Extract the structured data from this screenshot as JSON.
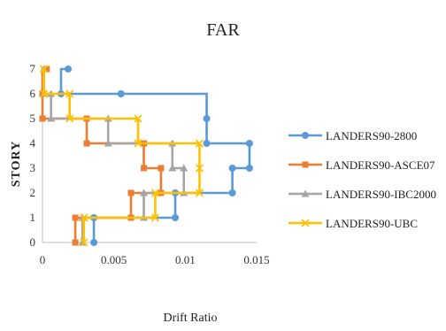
{
  "chart_data": {
    "type": "line",
    "title": "FAR",
    "xlabel": "Drift Ratio",
    "ylabel": "STORY",
    "xlim": [
      0,
      0.015
    ],
    "ylim": [
      0,
      7
    ],
    "x_ticks": [
      "0",
      "0.005",
      "0.01",
      "0.015"
    ],
    "y_ticks": [
      "0",
      "1",
      "2",
      "3",
      "4",
      "5",
      "6",
      "7"
    ],
    "grid": false,
    "legend_position": "right",
    "step": "pre",
    "series": [
      {
        "name": "LANDERS90-2800",
        "color": "#5B9BD5",
        "marker": "circle",
        "points": [
          [
            0.0018,
            7
          ],
          [
            0.0013,
            6
          ],
          [
            0.0055,
            6
          ],
          [
            0.0115,
            5
          ],
          [
            0.0115,
            4
          ],
          [
            0.0145,
            4
          ],
          [
            0.0145,
            3
          ],
          [
            0.0133,
            3
          ],
          [
            0.0133,
            2
          ],
          [
            0.0093,
            2
          ],
          [
            0.0093,
            1
          ],
          [
            0.0036,
            1
          ],
          [
            0.0036,
            0
          ]
        ]
      },
      {
        "name": "LANDERS90-ASCE07",
        "color": "#ED7D31",
        "marker": "square",
        "points": [
          [
            0.0003,
            7
          ],
          [
            0.0,
            6
          ],
          [
            0.0,
            5
          ],
          [
            0.0031,
            5
          ],
          [
            0.0031,
            4
          ],
          [
            0.0071,
            4
          ],
          [
            0.0071,
            3
          ],
          [
            0.0083,
            3
          ],
          [
            0.0083,
            2
          ],
          [
            0.0062,
            2
          ],
          [
            0.0062,
            1
          ],
          [
            0.0023,
            1
          ],
          [
            0.0023,
            0
          ]
        ]
      },
      {
        "name": "LANDERS90-IBC2000",
        "color": "#A5A5A5",
        "marker": "triangle",
        "points": [
          [
            0.0001,
            7
          ],
          [
            0.0001,
            6
          ],
          [
            0.0006,
            6
          ],
          [
            0.0006,
            5
          ],
          [
            0.0046,
            5
          ],
          [
            0.0046,
            4
          ],
          [
            0.0091,
            4
          ],
          [
            0.0091,
            3
          ],
          [
            0.0099,
            3
          ],
          [
            0.0099,
            2
          ],
          [
            0.0071,
            2
          ],
          [
            0.0071,
            1
          ],
          [
            0.0028,
            1
          ],
          [
            0.0028,
            0
          ]
        ]
      },
      {
        "name": "LANDERS90-UBC",
        "color": "#FFC000",
        "marker": "x",
        "points": [
          [
            0.0001,
            7
          ],
          [
            0.0001,
            6
          ],
          [
            0.0019,
            6
          ],
          [
            0.0019,
            5
          ],
          [
            0.0067,
            5
          ],
          [
            0.0067,
            4
          ],
          [
            0.011,
            4
          ],
          [
            0.011,
            3
          ],
          [
            0.011,
            2
          ],
          [
            0.0079,
            2
          ],
          [
            0.0079,
            1
          ],
          [
            0.0029,
            1
          ],
          [
            0.0029,
            0
          ]
        ]
      }
    ]
  }
}
